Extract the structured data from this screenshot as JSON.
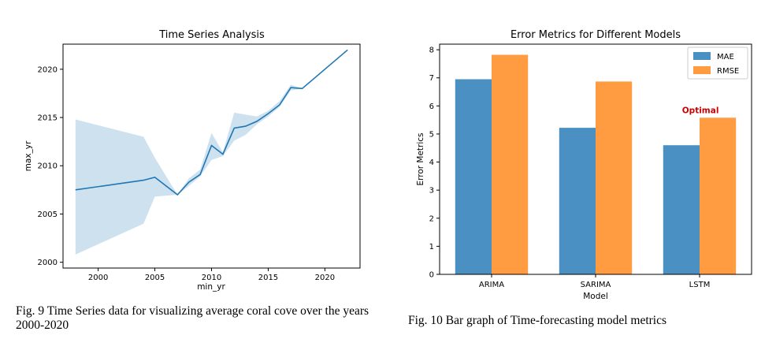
{
  "chart_data": [
    {
      "type": "line",
      "title": "Time Series Analysis",
      "xlabel": "min_yr",
      "ylabel": "max_yr",
      "xlim": [
        1996.9,
        2023.1
      ],
      "ylim": [
        1999.4,
        2022.6
      ],
      "xticks": [
        2000,
        2005,
        2010,
        2015,
        2020
      ],
      "yticks": [
        2000,
        2005,
        2010,
        2015,
        2020
      ],
      "grid": false,
      "series": [
        {
          "color": "#1f77b4",
          "band_color": "#1f77b4",
          "x": [
            1998,
            2004,
            2005,
            2007,
            2008,
            2009,
            2010,
            2011,
            2012,
            2013,
            2014,
            2015,
            2016,
            2017,
            2018,
            2022
          ],
          "y": [
            2007.5,
            2008.5,
            2008.8,
            2007.0,
            2008.3,
            2009.1,
            2012.1,
            2011.2,
            2013.9,
            2014.1,
            2014.6,
            2015.4,
            2016.3,
            2018.1,
            2018.0,
            2022.0
          ],
          "lower": [
            2000.8,
            2004.0,
            2006.8,
            2007.0,
            2007.9,
            2008.9,
            2010.6,
            2011.0,
            2012.6,
            2013.2,
            2014.3,
            2015.1,
            2016.1,
            2017.8,
            2018.0,
            2022.0
          ],
          "upper": [
            2014.8,
            2013.0,
            2010.8,
            2007.0,
            2008.7,
            2009.6,
            2013.4,
            2011.4,
            2015.5,
            2015.3,
            2015.1,
            2015.7,
            2016.7,
            2018.4,
            2018.0,
            2022.0
          ]
        }
      ]
    },
    {
      "type": "bar",
      "title": "Error Metrics for Different Models",
      "xlabel": "Model",
      "ylabel": "Error Metrics",
      "categories": [
        "ARIMA",
        "SARIMA",
        "LSTM"
      ],
      "ylim": [
        0,
        8.2
      ],
      "yticks": [
        0,
        1,
        2,
        3,
        4,
        5,
        6,
        7,
        8
      ],
      "legend_position": "top-right",
      "grid": false,
      "series": [
        {
          "name": "MAE",
          "color": "#4a90c2",
          "values": [
            6.95,
            5.22,
            4.6
          ]
        },
        {
          "name": "RMSE",
          "color": "#ff9b40",
          "values": [
            7.82,
            6.87,
            5.58
          ]
        }
      ],
      "annotation": {
        "text": "Optimal",
        "color": "#cc0000",
        "category": "LSTM",
        "series": "RMSE"
      }
    }
  ],
  "captions": {
    "fig9": "Fig. 9 Time Series data for visualizing average coral cove over the years 2000-2020",
    "fig10": "Fig. 10 Bar graph of Time-forecasting model metrics"
  }
}
